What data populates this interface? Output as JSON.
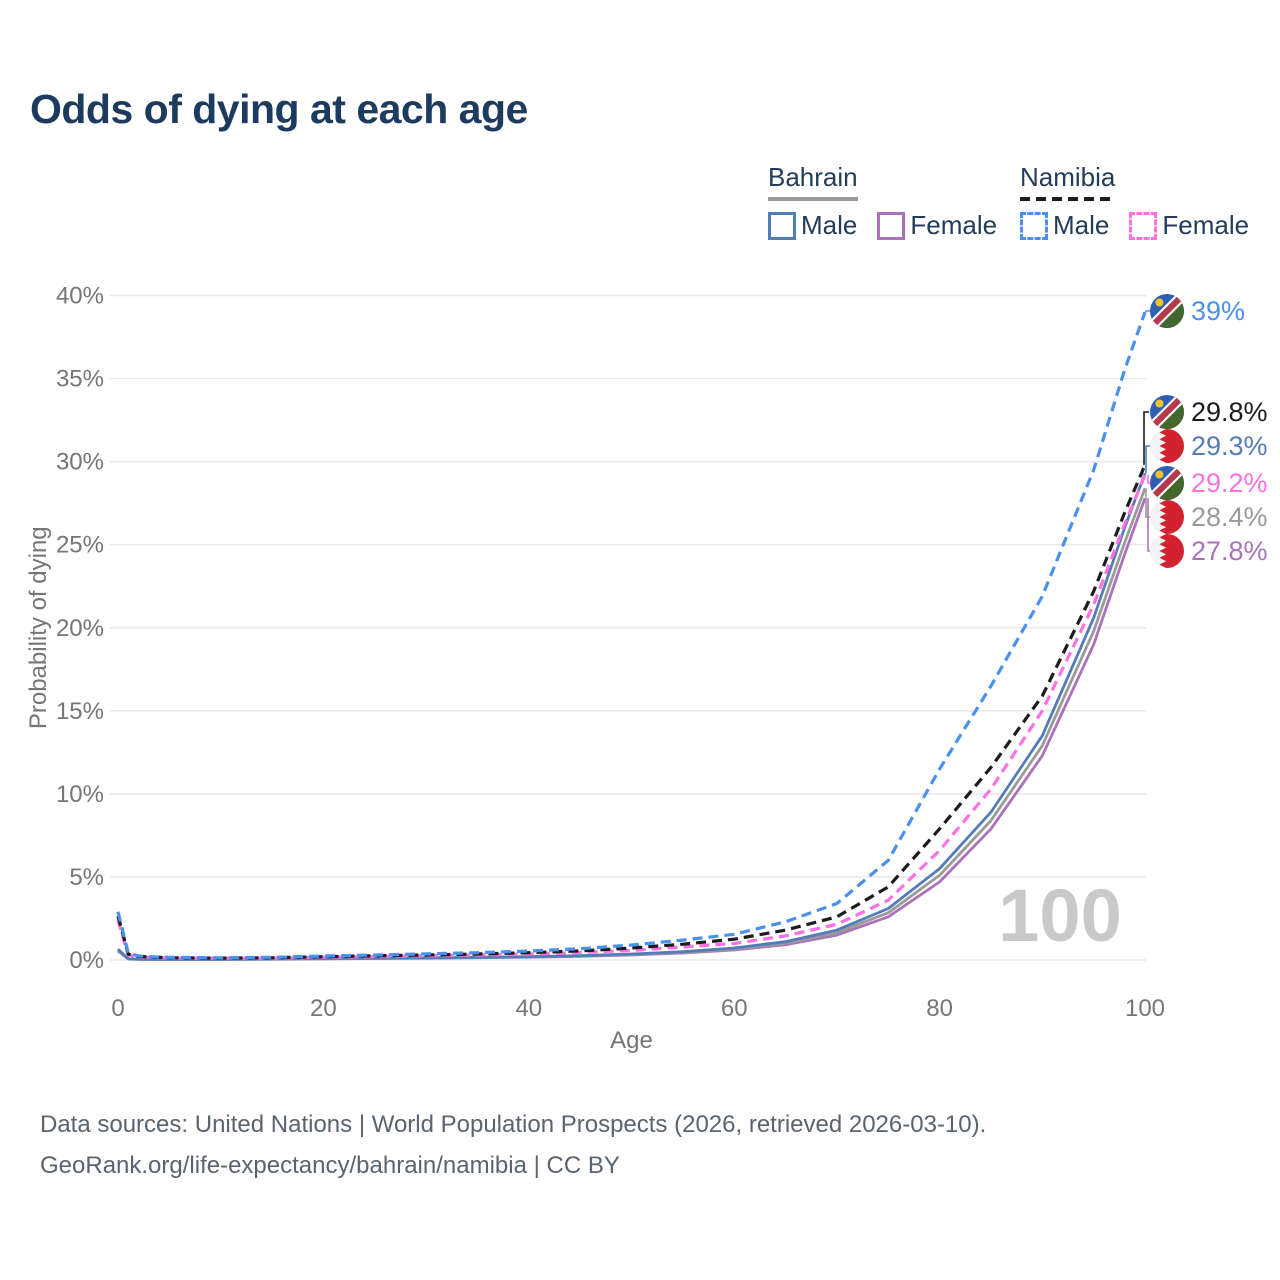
{
  "page": {
    "title": "Odds of dying at each age"
  },
  "legend": {
    "bahrain": {
      "label": "Bahrain",
      "male": "Male",
      "female": "Female"
    },
    "namibia": {
      "label": "Namibia",
      "male": "Male",
      "female": "Female"
    }
  },
  "colors": {
    "title": "#1d3a5f",
    "legend_text": "#233c5a",
    "axis_text": "#767676",
    "gridline": "#e8e8e8",
    "watermark": "#c9c9c9",
    "footer_text": "#5a6470",
    "bahrain_male": "#537db8",
    "bahrain_female": "#ab72ba",
    "bahrain_all": "#9a9a9a",
    "namibia_male": "#4a90f0",
    "namibia_female": "#ff70e0",
    "namibia_all": "#1c1c1c"
  },
  "chart_data": {
    "type": "line",
    "title": "Odds of dying at each age",
    "xlabel": "Age",
    "ylabel": "Probability of dying",
    "xlim": [
      0,
      100
    ],
    "ylim": [
      0,
      40
    ],
    "x_ticks": [
      0,
      20,
      40,
      60,
      80,
      100
    ],
    "y_ticks": [
      "0%",
      "5%",
      "10%",
      "15%",
      "20%",
      "25%",
      "30%",
      "35%",
      "40%"
    ],
    "grid": "horizontal",
    "legend_position": "top-right",
    "watermark": "100",
    "ages": [
      0,
      1,
      2,
      3,
      5,
      10,
      15,
      20,
      25,
      30,
      35,
      40,
      45,
      50,
      55,
      60,
      65,
      70,
      75,
      80,
      85,
      90,
      95,
      98,
      100
    ],
    "series": [
      {
        "id": "namibia-male",
        "name": "Namibia Male",
        "country": "Namibia",
        "sex": "Male",
        "dashed": true,
        "color": "#4a90f0",
        "flag": "namibia",
        "end_label": "39%",
        "values": [
          2.9,
          0.4,
          0.25,
          0.2,
          0.16,
          0.13,
          0.16,
          0.24,
          0.3,
          0.37,
          0.44,
          0.54,
          0.68,
          0.9,
          1.2,
          1.55,
          2.3,
          3.4,
          6.0,
          11.5,
          16.5,
          21.9,
          29.5,
          35.5,
          39.0
        ]
      },
      {
        "id": "namibia-all",
        "name": "Namibia",
        "country": "Namibia",
        "sex": "All",
        "dashed": true,
        "color": "#1c1c1c",
        "flag": "namibia",
        "end_label": "29.8%",
        "values": [
          2.65,
          0.35,
          0.22,
          0.18,
          0.14,
          0.11,
          0.13,
          0.2,
          0.25,
          0.3,
          0.36,
          0.44,
          0.55,
          0.72,
          0.95,
          1.25,
          1.8,
          2.6,
          4.4,
          7.9,
          11.6,
          15.9,
          22.2,
          26.9,
          29.8
        ]
      },
      {
        "id": "bahrain-male",
        "name": "Bahrain Male",
        "country": "Bahrain",
        "sex": "Male",
        "dashed": false,
        "color": "#537db8",
        "flag": "bahrain",
        "end_label": "29.3%",
        "values": [
          0.65,
          0.07,
          0.05,
          0.045,
          0.04,
          0.04,
          0.06,
          0.09,
          0.11,
          0.13,
          0.16,
          0.2,
          0.26,
          0.36,
          0.5,
          0.72,
          1.1,
          1.8,
          3.1,
          5.5,
          8.9,
          13.5,
          20.6,
          26.0,
          29.3
        ]
      },
      {
        "id": "namibia-female",
        "name": "Namibia Female",
        "country": "Namibia",
        "sex": "Female",
        "dashed": true,
        "color": "#ff70e0",
        "flag": "namibia",
        "end_label": "29.2%",
        "values": [
          2.4,
          0.3,
          0.2,
          0.16,
          0.12,
          0.1,
          0.11,
          0.16,
          0.2,
          0.25,
          0.3,
          0.36,
          0.45,
          0.58,
          0.78,
          1.0,
          1.45,
          2.15,
          3.6,
          6.6,
          10.3,
          15.0,
          21.4,
          26.2,
          29.2
        ]
      },
      {
        "id": "bahrain-all",
        "name": "Bahrain",
        "country": "Bahrain",
        "sex": "All",
        "dashed": false,
        "color": "#9a9a9a",
        "flag": "bahrain",
        "end_label": "28.4%",
        "values": [
          0.6,
          0.065,
          0.048,
          0.042,
          0.038,
          0.038,
          0.055,
          0.08,
          0.1,
          0.12,
          0.15,
          0.19,
          0.24,
          0.33,
          0.46,
          0.66,
          1.0,
          1.65,
          2.85,
          5.1,
          8.4,
          12.9,
          19.8,
          25.1,
          28.4
        ]
      },
      {
        "id": "bahrain-female",
        "name": "Bahrain Female",
        "country": "Bahrain",
        "sex": "Female",
        "dashed": false,
        "color": "#ab72ba",
        "flag": "bahrain",
        "end_label": "27.8%",
        "values": [
          0.55,
          0.06,
          0.045,
          0.04,
          0.035,
          0.035,
          0.05,
          0.07,
          0.09,
          0.11,
          0.14,
          0.17,
          0.22,
          0.3,
          0.42,
          0.6,
          0.92,
          1.5,
          2.6,
          4.7,
          7.9,
          12.3,
          19.0,
          24.4,
          27.8
        ]
      }
    ]
  },
  "footer": {
    "line1": "Data sources: United Nations | World Population Prospects (2026, retrieved 2026-03-10).",
    "line2": "GeoRank.org/life-expectancy/bahrain/namibia | CC BY"
  }
}
